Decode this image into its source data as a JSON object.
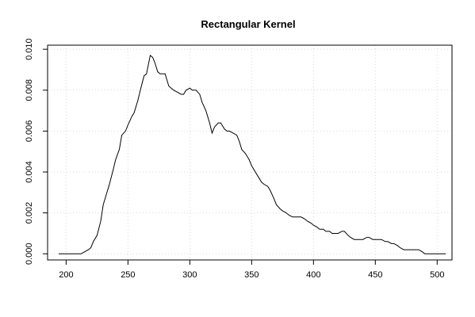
{
  "chart_data": {
    "type": "line",
    "title": "Rectangular Kernel",
    "xlabel": "",
    "ylabel": "",
    "xlim": [
      185,
      512
    ],
    "ylim": [
      -0.0003,
      0.0102
    ],
    "grid": true,
    "x_ticks": [
      200,
      250,
      300,
      350,
      400,
      450,
      500
    ],
    "x_tick_labels": [
      "200",
      "250",
      "300",
      "350",
      "400",
      "450",
      "500"
    ],
    "y_ticks": [
      0.0,
      0.002,
      0.004,
      0.006,
      0.008,
      0.01
    ],
    "y_tick_labels": [
      "0.000",
      "0.002",
      "0.004",
      "0.006",
      "0.008",
      "0.010"
    ],
    "series": [
      {
        "x": [
          194,
          200,
          205,
          210,
          212,
          215,
          218,
          220,
          222,
          225,
          228,
          230,
          232,
          235,
          238,
          240,
          243,
          245,
          248,
          250,
          253,
          255,
          258,
          260,
          263,
          265,
          268,
          270,
          272,
          274,
          276,
          278,
          280,
          283,
          285,
          287,
          290,
          293,
          295,
          297,
          300,
          302,
          305,
          308,
          310,
          313,
          316,
          318,
          320,
          323,
          325,
          328,
          330,
          332,
          335,
          338,
          340,
          342,
          345,
          348,
          350,
          353,
          355,
          358,
          360,
          363,
          365,
          368,
          370,
          373,
          375,
          378,
          380,
          383,
          385,
          388,
          390,
          393,
          395,
          398,
          400,
          403,
          405,
          408,
          410,
          413,
          415,
          418,
          420,
          423,
          425,
          428,
          430,
          433,
          435,
          438,
          440,
          443,
          445,
          448,
          450,
          453,
          455,
          458,
          460,
          463,
          465,
          468,
          470,
          473,
          475,
          478,
          480,
          483,
          485,
          488,
          490,
          493,
          495,
          500,
          505,
          507
        ],
        "y": [
          0.0,
          0.0,
          0.0,
          0.0,
          0.0,
          0.0001,
          0.0002,
          0.0003,
          0.0006,
          0.0009,
          0.0016,
          0.0024,
          0.0028,
          0.0034,
          0.0041,
          0.0046,
          0.0051,
          0.0058,
          0.006,
          0.0063,
          0.0067,
          0.0069,
          0.0075,
          0.008,
          0.0087,
          0.0088,
          0.0097,
          0.0096,
          0.0093,
          0.0089,
          0.0088,
          0.0088,
          0.0088,
          0.0082,
          0.0081,
          0.008,
          0.0079,
          0.0078,
          0.0078,
          0.008,
          0.0081,
          0.008,
          0.008,
          0.0078,
          0.0074,
          0.007,
          0.0064,
          0.0059,
          0.0062,
          0.0064,
          0.0064,
          0.0061,
          0.006,
          0.006,
          0.0059,
          0.0058,
          0.0055,
          0.0051,
          0.0049,
          0.0046,
          0.0043,
          0.004,
          0.0038,
          0.0035,
          0.0034,
          0.0033,
          0.0031,
          0.0027,
          0.0024,
          0.0022,
          0.0021,
          0.002,
          0.0019,
          0.0018,
          0.0018,
          0.0018,
          0.0018,
          0.0017,
          0.0016,
          0.0015,
          0.0014,
          0.0013,
          0.0012,
          0.0012,
          0.0011,
          0.0011,
          0.001,
          0.001,
          0.001,
          0.0011,
          0.0011,
          0.0009,
          0.0008,
          0.0007,
          0.0007,
          0.0007,
          0.0007,
          0.0008,
          0.0008,
          0.0007,
          0.0007,
          0.0007,
          0.0007,
          0.0006,
          0.0006,
          0.0005,
          0.0005,
          0.0004,
          0.0003,
          0.0002,
          0.0002,
          0.0002,
          0.0002,
          0.0002,
          0.0002,
          0.0001,
          0.0,
          0.0,
          0.0,
          0.0,
          0.0,
          0.0
        ]
      }
    ]
  }
}
